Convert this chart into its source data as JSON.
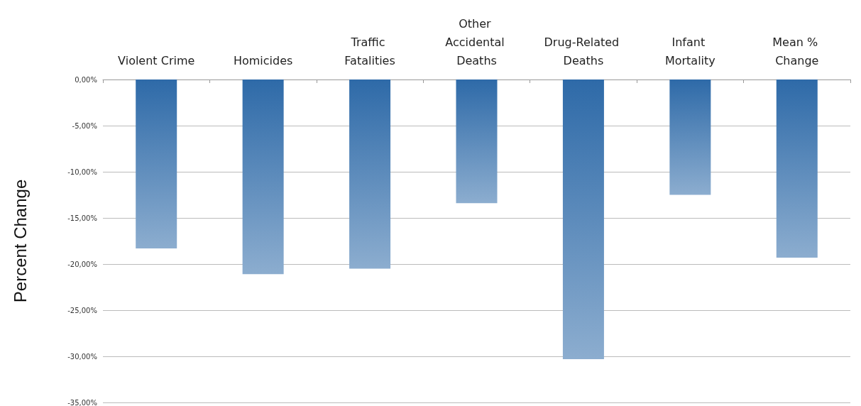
{
  "chart_data": {
    "type": "bar",
    "ylabel": "Percent Change",
    "categories": [
      "Violent Crime",
      "Homicides",
      "Traffic Fatalities",
      "Other Accidental Deaths",
      "Drug-Related Deaths",
      "Infant Mortality",
      "Mean % Change"
    ],
    "values": [
      -18.3,
      -21.1,
      -20.5,
      -13.4,
      -30.3,
      -12.5,
      -19.3
    ],
    "color": "#2e6aa8",
    "ylim": [
      -35,
      0
    ],
    "yticks": [
      {
        "value": 0,
        "label": "0,00%"
      },
      {
        "value": -5,
        "label": "-5,00%"
      },
      {
        "value": -10,
        "label": "-10,00%"
      },
      {
        "value": -15,
        "label": "-15,00%"
      },
      {
        "value": -20,
        "label": "-20,00%"
      },
      {
        "value": -25,
        "label": "-25,00%"
      },
      {
        "value": -30,
        "label": "-30,00%"
      },
      {
        "value": -35,
        "label": "-35,00%"
      }
    ],
    "grid": true
  }
}
